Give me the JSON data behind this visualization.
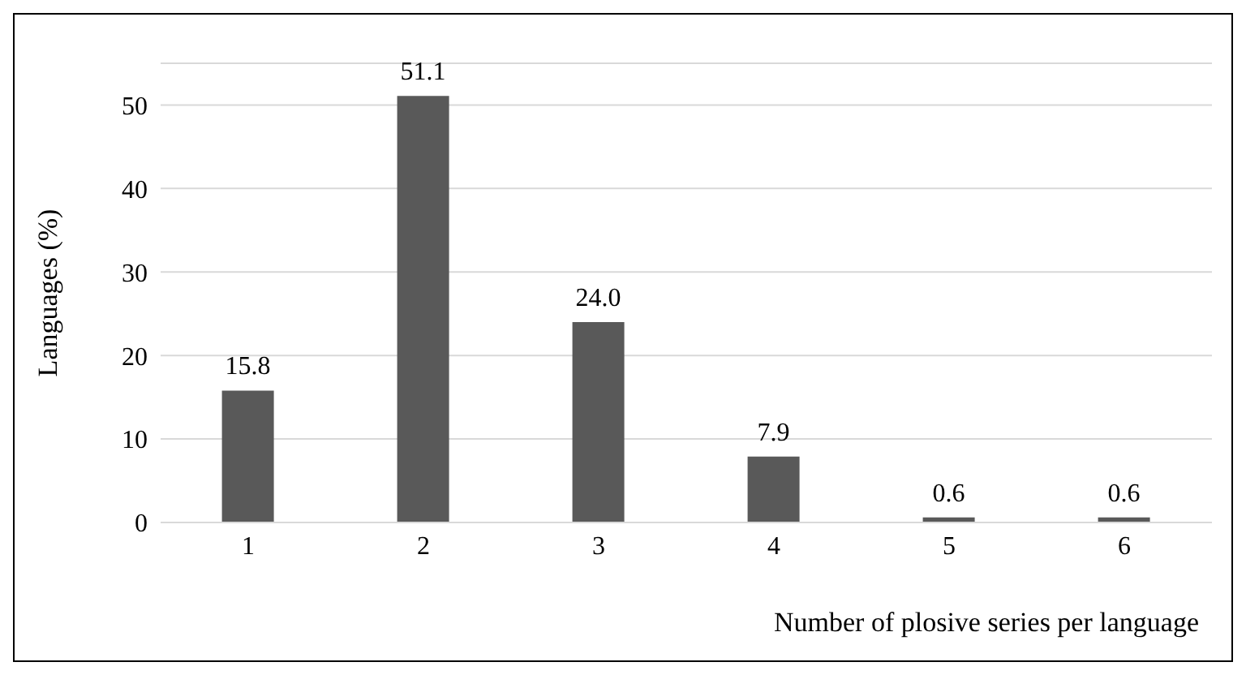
{
  "chart_data": {
    "type": "bar",
    "xlabel": "Number of plosive series per language",
    "ylabel": "Languages (%)",
    "categories": [
      "1",
      "2",
      "3",
      "4",
      "5",
      "6"
    ],
    "values": [
      15.8,
      51.1,
      24.0,
      7.9,
      0.6,
      0.6
    ],
    "value_labels": [
      "15.8",
      "51.1",
      "24.0",
      "7.9",
      "0.6",
      "0.6"
    ],
    "color": "#595959",
    "ylim": [
      0,
      55
    ],
    "yticks": [
      0,
      10,
      20,
      30,
      40,
      50
    ],
    "grid": "y",
    "legend": false
  }
}
